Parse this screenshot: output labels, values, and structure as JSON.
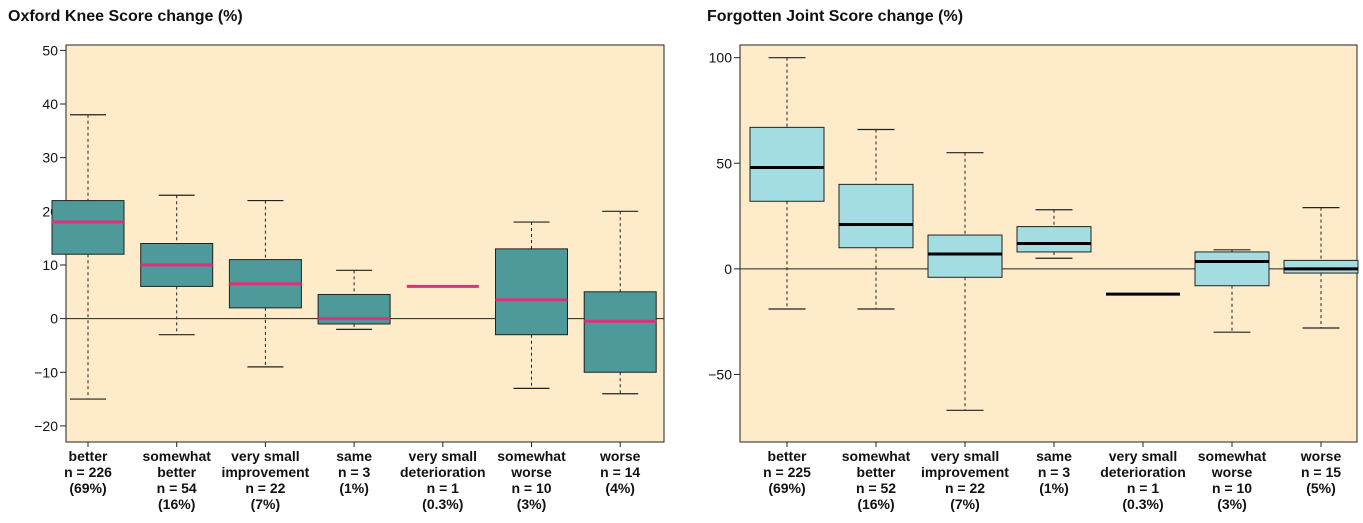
{
  "chart_data": [
    {
      "type": "boxplot",
      "title": "Oxford Knee Score change (%)",
      "ylim": [
        -23,
        51
      ],
      "yticks": [
        -20,
        -10,
        0,
        10,
        20,
        30,
        40,
        50
      ],
      "colors": {
        "background": "#fdebc9",
        "box": "#4e9a9a",
        "median": "#e0307a"
      },
      "reference_line": 0,
      "categories": [
        {
          "label_lines": [
            "better",
            "n = 226",
            "(69%)"
          ],
          "whisker_low": -15,
          "q1": 12,
          "median": 18,
          "q3": 22,
          "whisker_high": 38
        },
        {
          "label_lines": [
            "somewhat",
            "better",
            "n = 54",
            "(16%)"
          ],
          "whisker_low": -3,
          "q1": 6,
          "median": 10,
          "q3": 14,
          "whisker_high": 23
        },
        {
          "label_lines": [
            "very small",
            "improvement",
            "n = 22",
            "(7%)"
          ],
          "whisker_low": -9,
          "q1": 2,
          "median": 6.5,
          "q3": 11,
          "whisker_high": 22
        },
        {
          "label_lines": [
            "same",
            "n = 3",
            "(1%)"
          ],
          "whisker_low": -2,
          "q1": -1,
          "median": 0,
          "q3": 4.5,
          "whisker_high": 9
        },
        {
          "label_lines": [
            "very small",
            "deterioration",
            "n = 1",
            "(0.3%)"
          ],
          "median": 6
        },
        {
          "label_lines": [
            "somewhat",
            "worse",
            "n = 10",
            "(3%)"
          ],
          "whisker_low": -13,
          "q1": -3,
          "median": 3.5,
          "q3": 13,
          "whisker_high": 18
        },
        {
          "label_lines": [
            "worse",
            "n = 14",
            "(4%)"
          ],
          "whisker_low": -14,
          "q1": -10,
          "median": -0.5,
          "q3": 5,
          "whisker_high": 20
        }
      ]
    },
    {
      "type": "boxplot",
      "title": "Forgotten Joint Score change (%)",
      "ylim": [
        -82,
        106
      ],
      "yticks": [
        -50,
        0,
        50,
        100
      ],
      "colors": {
        "background": "#fdebc9",
        "box": "#a3dde2",
        "median": "#000000"
      },
      "reference_line": 0,
      "categories": [
        {
          "label_lines": [
            "better",
            "n = 225",
            "(69%)"
          ],
          "whisker_low": -19,
          "q1": 32,
          "median": 48,
          "q3": 67,
          "whisker_high": 100
        },
        {
          "label_lines": [
            "somewhat",
            "better",
            "n = 52",
            "(16%)"
          ],
          "whisker_low": -19,
          "q1": 10,
          "median": 21,
          "q3": 40,
          "whisker_high": 66
        },
        {
          "label_lines": [
            "very small",
            "improvement",
            "n = 22",
            "(7%)"
          ],
          "whisker_low": -67,
          "q1": -4,
          "median": 7,
          "q3": 16,
          "whisker_high": 55
        },
        {
          "label_lines": [
            "same",
            "n = 3",
            "(1%)"
          ],
          "whisker_low": 5,
          "q1": 8,
          "median": 12,
          "q3": 20,
          "whisker_high": 28
        },
        {
          "label_lines": [
            "very small",
            "deterioration",
            "n = 1",
            "(0.3%)"
          ],
          "median": -12
        },
        {
          "label_lines": [
            "somewhat",
            "worse",
            "n = 10",
            "(3%)"
          ],
          "whisker_low": -30,
          "q1": -8,
          "median": 3.5,
          "q3": 8,
          "whisker_high": 9
        },
        {
          "label_lines": [
            "worse",
            "n = 15",
            "(5%)"
          ],
          "whisker_low": -28,
          "q1": -2,
          "median": 0,
          "q3": 4,
          "whisker_high": 29
        }
      ]
    }
  ]
}
